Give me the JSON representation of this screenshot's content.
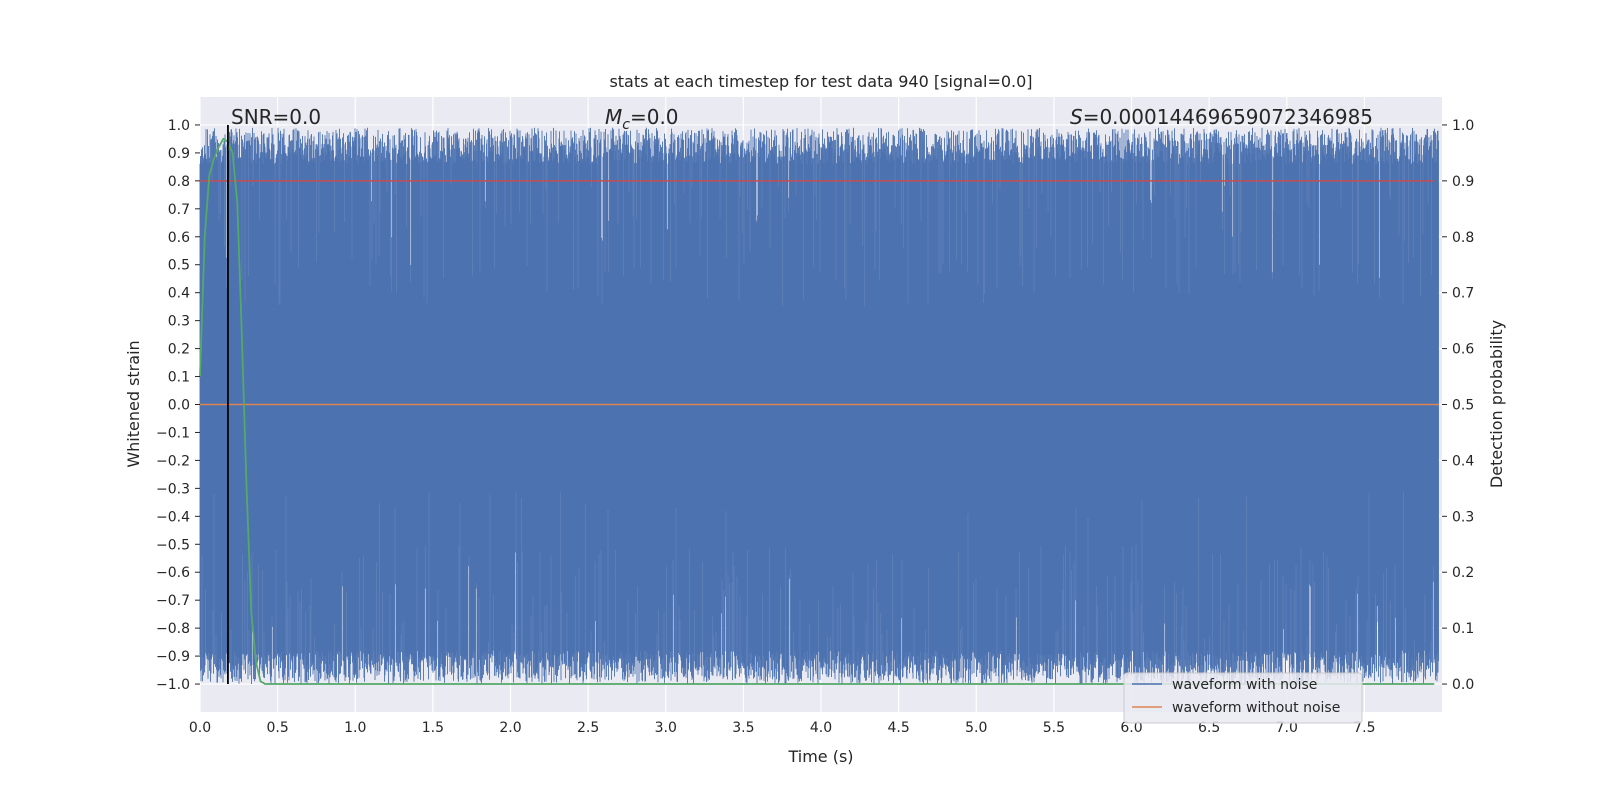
{
  "chart_data": {
    "type": "line",
    "title": "stats at each timestep for test data 940 [signal=0.0]",
    "xlabel": "Time (s)",
    "ylabel": "Whitened strain",
    "ylabel_right": "Detection probability",
    "xlim": [
      0.0,
      8.0
    ],
    "ylim": [
      -1.1,
      1.1
    ],
    "ylim_right": [
      -0.05,
      1.05
    ],
    "x_ticks": [
      "0.0",
      "0.5",
      "1.0",
      "1.5",
      "2.0",
      "2.5",
      "3.0",
      "3.5",
      "4.0",
      "4.5",
      "5.0",
      "5.5",
      "6.0",
      "6.5",
      "7.0",
      "7.5"
    ],
    "y_ticks": [
      "1.0",
      "0.9",
      "0.8",
      "0.7",
      "0.6",
      "0.5",
      "0.4",
      "0.3",
      "0.2",
      "0.1",
      "0.0",
      "−0.1",
      "−0.2",
      "−0.3",
      "−0.4",
      "−0.5",
      "−0.6",
      "−0.7",
      "−0.8",
      "−0.9",
      "−1.0"
    ],
    "y_ticks_right": [
      "1.0",
      "0.9",
      "0.8",
      "0.7",
      "0.6",
      "0.5",
      "0.4",
      "0.3",
      "0.2",
      "0.1",
      "0.0"
    ],
    "grid": true,
    "legend_position": "lower-right",
    "annotations": {
      "snr": "SNR=0.0",
      "mc_symbol": "M",
      "mc_sub": "c",
      "mc_value": "=0.0",
      "s_symbol": "S",
      "s_value": "=0.00014469659072346985"
    },
    "series": [
      {
        "name": "waveform with noise",
        "color": "#4c72b0",
        "description_range": [
          -1.0,
          1.0
        ]
      },
      {
        "name": "waveform without noise",
        "color": "#dd8452",
        "values_constant": 0.0
      },
      {
        "color": "#55a868",
        "axis": "right",
        "x": [
          0.0,
          0.03,
          0.06,
          0.09,
          0.12,
          0.15,
          0.18,
          0.21,
          0.24,
          0.27,
          0.3,
          0.33,
          0.36,
          0.39,
          0.42,
          7.95
        ],
        "values": [
          0.55,
          0.8,
          0.91,
          0.94,
          0.96,
          0.975,
          0.97,
          0.95,
          0.86,
          0.62,
          0.35,
          0.13,
          0.04,
          0.005,
          0.0,
          0.0
        ]
      },
      {
        "color": "#c44e52",
        "axis": "right",
        "values_constant": 0.9
      },
      {
        "color": "#000000",
        "type": "vline",
        "x": 0.18
      }
    ]
  }
}
